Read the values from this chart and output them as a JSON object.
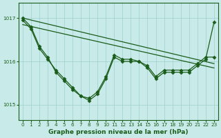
{
  "xlabel": "Graphe pression niveau de la mer (hPa)",
  "bg_color": "#c8eae8",
  "grid_color": "#9ecece",
  "line_color": "#1a5c1a",
  "marker": "D",
  "markersize": 2.5,
  "linewidth": 0.9,
  "xlim": [
    -0.5,
    23.5
  ],
  "ylim": [
    1014.65,
    1017.35
  ],
  "yticks": [
    1015,
    1016,
    1017
  ],
  "xticks": [
    0,
    1,
    2,
    3,
    4,
    5,
    6,
    7,
    8,
    9,
    10,
    11,
    12,
    13,
    14,
    15,
    16,
    17,
    18,
    19,
    20,
    21,
    22,
    23
  ],
  "tick_fontsize": 5.2,
  "xlabel_fontsize": 6.5,
  "series": [
    {
      "x": [
        0,
        23
      ],
      "y": [
        1017.0,
        1015.95
      ],
      "has_marker": false
    },
    {
      "x": [
        0,
        23
      ],
      "y": [
        1016.85,
        1015.85
      ],
      "has_marker": false
    },
    {
      "x": [
        0,
        1,
        2,
        3,
        4,
        5,
        6,
        7,
        8,
        9,
        10,
        11,
        12,
        13,
        14,
        15,
        16,
        17,
        18,
        19,
        20,
        21,
        22,
        23
      ],
      "y": [
        1017.0,
        1016.8,
        1016.35,
        1016.1,
        1015.75,
        1015.55,
        1015.35,
        1015.2,
        1015.15,
        1015.3,
        1015.65,
        1016.15,
        1016.05,
        1016.05,
        1016.0,
        1015.9,
        1015.65,
        1015.8,
        1015.8,
        1015.8,
        1015.8,
        1015.95,
        1016.1,
        1016.1
      ],
      "has_marker": true
    },
    {
      "x": [
        0,
        1,
        2,
        3,
        4,
        5,
        6,
        7,
        8,
        9,
        10,
        11,
        12,
        13,
        14,
        15,
        16,
        17,
        18,
        19,
        20,
        21,
        22,
        23
      ],
      "y": [
        1016.95,
        1016.75,
        1016.3,
        1016.05,
        1015.8,
        1015.6,
        1015.4,
        1015.2,
        1015.1,
        1015.25,
        1015.6,
        1016.1,
        1016.0,
        1016.0,
        1016.0,
        1015.85,
        1015.6,
        1015.75,
        1015.75,
        1015.75,
        1015.75,
        1015.9,
        1016.05,
        1016.9
      ],
      "has_marker": true
    }
  ]
}
